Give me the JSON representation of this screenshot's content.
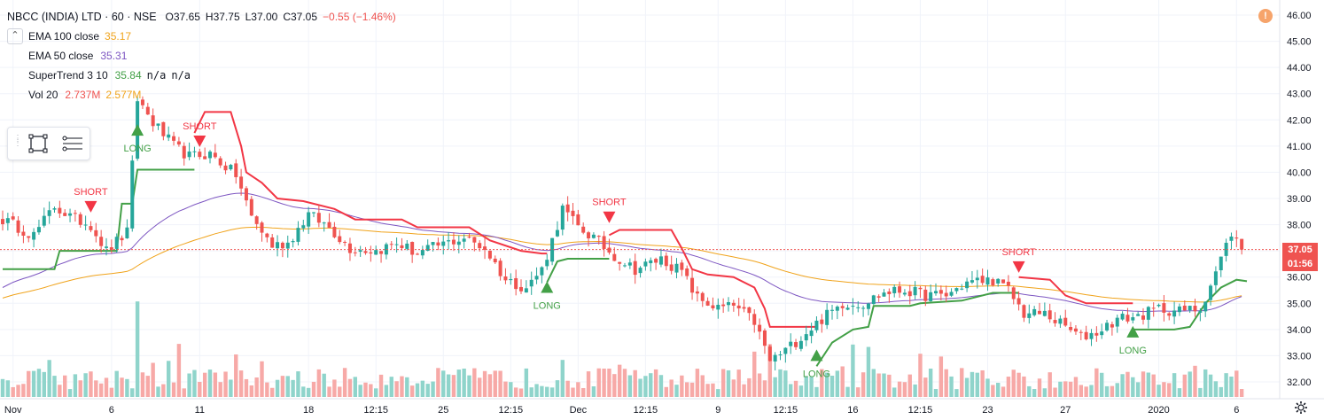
{
  "header": {
    "symbol": "NBCC (INDIA) LTD · 60 · NSE",
    "open": "O37.65",
    "high": "H37.75",
    "low": "L37.00",
    "close": "C37.05",
    "change": "−0.55 (−1.46%)"
  },
  "indicators": [
    {
      "name": "EMA 100 close",
      "value": "35.17",
      "color": "#f0a31b"
    },
    {
      "name": "EMA 50 close",
      "value": "35.31",
      "color": "#7e57c2"
    },
    {
      "name": "SuperTrend 3 10",
      "value": "35.84",
      "value2": "n/a",
      "value3": "n/a",
      "color": "#43a047"
    },
    {
      "name": "Vol 20",
      "value": "2.737M",
      "value2": "2.577M",
      "color": "#ef5350"
    }
  ],
  "price_tags": {
    "last_price": "37.05",
    "countdown": "01:56"
  },
  "colors": {
    "up": "#26a69a",
    "down": "#ef5350",
    "st_up": "#43a047",
    "st_down": "#f23645",
    "ema100": "#f0a31b",
    "ema50": "#7e57c2",
    "vol_up": "#8fd4cb",
    "vol_down": "#f7a9a7"
  },
  "icons": [
    "collapse-chevron-icon",
    "rectangle-tool-icon",
    "horizontal-lines-tool-icon",
    "alert-dot-icon",
    "settings-gear-icon"
  ],
  "chart_data": {
    "type": "candlestick",
    "title": "NBCC (INDIA) LTD · 60 · NSE",
    "ylim": [
      31.6,
      46.4
    ],
    "y_ticks": [
      "32.00",
      "33.00",
      "34.00",
      "35.00",
      "36.00",
      "37.00",
      "38.00",
      "39.00",
      "40.00",
      "41.00",
      "42.00",
      "43.00",
      "44.00",
      "45.00",
      "46.00"
    ],
    "x_ticks": [
      {
        "label": "Nov",
        "bar": 2
      },
      {
        "label": "6",
        "bar": 21
      },
      {
        "label": "11",
        "bar": 38
      },
      {
        "label": "18",
        "bar": 59
      },
      {
        "label": "12:15",
        "bar": 72
      },
      {
        "label": "25",
        "bar": 85
      },
      {
        "label": "12:15",
        "bar": 98
      },
      {
        "label": "Dec",
        "bar": 111
      },
      {
        "label": "12:15",
        "bar": 124
      },
      {
        "label": "9",
        "bar": 138
      },
      {
        "label": "12:15",
        "bar": 151
      },
      {
        "label": "16",
        "bar": 164
      },
      {
        "label": "12:15",
        "bar": 177
      },
      {
        "label": "23",
        "bar": 190
      },
      {
        "label": "27",
        "bar": 205
      },
      {
        "label": "2020",
        "bar": 223
      },
      {
        "label": "6",
        "bar": 238
      }
    ],
    "signals": [
      {
        "type": "LONG",
        "label": "LONG",
        "bar": 26,
        "price": 41.6
      },
      {
        "type": "SHORT",
        "label": "SHORT",
        "bar": 17,
        "price": 38.7
      },
      {
        "type": "SHORT",
        "label": "SHORT",
        "bar": 38,
        "price": 41.2
      },
      {
        "type": "LONG",
        "label": "LONG",
        "bar": 105,
        "price": 35.6
      },
      {
        "type": "SHORT",
        "label": "SHORT",
        "bar": 117,
        "price": 38.3
      },
      {
        "type": "LONG",
        "label": "LONG",
        "bar": 157,
        "price": 33.0
      },
      {
        "type": "SHORT",
        "label": "SHORT",
        "bar": 196,
        "price": 36.4
      },
      {
        "type": "LONG",
        "label": "LONG",
        "bar": 218,
        "price": 33.9
      }
    ],
    "anchors": [
      [
        0,
        38.2
      ],
      [
        6,
        37.6
      ],
      [
        10,
        38.7
      ],
      [
        13,
        38.3
      ],
      [
        17,
        38.0
      ],
      [
        20,
        37.0
      ],
      [
        24,
        37.7
      ],
      [
        26,
        42.8
      ],
      [
        29,
        41.9
      ],
      [
        33,
        41.0
      ],
      [
        36,
        40.6
      ],
      [
        40,
        40.7
      ],
      [
        45,
        39.9
      ],
      [
        48,
        38.3
      ],
      [
        52,
        37.2
      ],
      [
        55,
        37.3
      ],
      [
        59,
        38.4
      ],
      [
        63,
        37.9
      ],
      [
        67,
        37.1
      ],
      [
        72,
        37.0
      ],
      [
        76,
        37.3
      ],
      [
        80,
        36.9
      ],
      [
        84,
        37.2
      ],
      [
        89,
        37.5
      ],
      [
        93,
        37.1
      ],
      [
        97,
        35.9
      ],
      [
        101,
        35.6
      ],
      [
        104,
        36.3
      ],
      [
        106,
        37.4
      ],
      [
        108,
        38.6
      ],
      [
        111,
        37.9
      ],
      [
        114,
        37.5
      ],
      [
        118,
        36.8
      ],
      [
        122,
        36.3
      ],
      [
        127,
        36.7
      ],
      [
        131,
        36.2
      ],
      [
        134,
        35.2
      ],
      [
        138,
        34.8
      ],
      [
        141,
        34.9
      ],
      [
        145,
        34.3
      ],
      [
        148,
        32.8
      ],
      [
        151,
        33.2
      ],
      [
        155,
        33.9
      ],
      [
        158,
        34.4
      ],
      [
        162,
        35.0
      ],
      [
        166,
        35.0
      ],
      [
        170,
        35.4
      ],
      [
        174,
        35.5
      ],
      [
        178,
        35.3
      ],
      [
        182,
        35.3
      ],
      [
        186,
        35.8
      ],
      [
        191,
        35.9
      ],
      [
        194,
        35.5
      ],
      [
        197,
        34.6
      ],
      [
        201,
        34.6
      ],
      [
        205,
        34.1
      ],
      [
        208,
        33.7
      ],
      [
        211,
        33.9
      ],
      [
        215,
        34.4
      ],
      [
        219,
        34.5
      ],
      [
        223,
        34.8
      ],
      [
        227,
        34.7
      ],
      [
        231,
        34.8
      ],
      [
        234,
        36.2
      ],
      [
        237,
        37.7
      ],
      [
        239,
        37.05
      ]
    ],
    "vol_range": [
      0,
      10
    ],
    "supertrend": {
      "segments": [
        {
          "dir": "up",
          "points": [
            [
              0,
              36.3
            ],
            [
              10,
              36.3
            ],
            [
              11,
              37.0
            ],
            [
              18,
              37.0
            ],
            [
              22,
              37.0
            ],
            [
              23,
              38.8
            ],
            [
              25,
              38.8
            ],
            [
              26,
              40.1
            ],
            [
              36,
              40.1
            ],
            [
              37,
              40.1
            ]
          ]
        },
        {
          "dir": "down",
          "points": [
            [
              37,
              41.5
            ],
            [
              39,
              42.3
            ],
            [
              44,
              42.3
            ],
            [
              46,
              41.0
            ],
            [
              47,
              40.0
            ],
            [
              50,
              39.6
            ],
            [
              53,
              39.0
            ],
            [
              58,
              38.9
            ],
            [
              64,
              38.6
            ],
            [
              68,
              38.2
            ],
            [
              77,
              38.2
            ],
            [
              80,
              37.9
            ],
            [
              90,
              37.9
            ],
            [
              94,
              37.4
            ],
            [
              100,
              37.0
            ],
            [
              104,
              36.9
            ],
            [
              105,
              36.9
            ]
          ]
        },
        {
          "dir": "up",
          "points": [
            [
              105,
              35.8
            ],
            [
              107,
              36.6
            ],
            [
              109,
              36.7
            ],
            [
              116,
              36.7
            ],
            [
              117,
              36.7
            ]
          ]
        },
        {
          "dir": "down",
          "points": [
            [
              117,
              37.6
            ],
            [
              119,
              37.8
            ],
            [
              129,
              37.8
            ],
            [
              131,
              37.1
            ],
            [
              133,
              36.3
            ],
            [
              136,
              36.1
            ],
            [
              141,
              36.0
            ],
            [
              145,
              35.6
            ],
            [
              147,
              34.8
            ],
            [
              148,
              34.1
            ],
            [
              156,
              34.1
            ],
            [
              157,
              34.1
            ]
          ]
        },
        {
          "dir": "up",
          "points": [
            [
              157,
              32.6
            ],
            [
              160,
              33.5
            ],
            [
              164,
              34.0
            ],
            [
              167,
              34.1
            ],
            [
              168,
              34.9
            ],
            [
              175,
              34.9
            ],
            [
              177,
              35.0
            ],
            [
              185,
              35.1
            ],
            [
              191,
              35.4
            ],
            [
              196,
              35.4
            ]
          ]
        },
        {
          "dir": "down",
          "points": [
            [
              196,
              36.0
            ],
            [
              202,
              35.9
            ],
            [
              205,
              35.3
            ],
            [
              209,
              35.0
            ],
            [
              218,
              35.0
            ]
          ]
        },
        {
          "dir": "up",
          "points": [
            [
              218,
              34.0
            ],
            [
              226,
              34.0
            ],
            [
              229,
              34.1
            ],
            [
              232,
              35.0
            ],
            [
              235,
              35.6
            ],
            [
              238,
              35.9
            ],
            [
              240,
              35.84
            ]
          ]
        }
      ]
    }
  }
}
